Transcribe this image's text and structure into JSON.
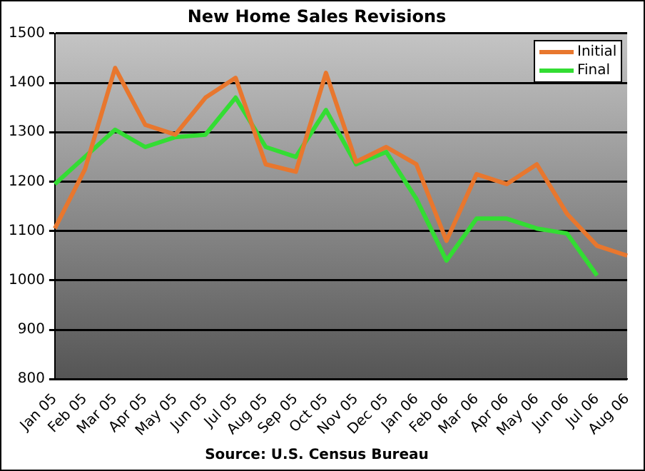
{
  "chart_data": {
    "type": "line",
    "title": "New Home Sales Revisions",
    "categories": [
      "Jan 05",
      "Feb 05",
      "Mar 05",
      "Apr 05",
      "May 05",
      "Jun 05",
      "Jul 05",
      "Aug 05",
      "Sep 05",
      "Oct 05",
      "Nov 05",
      "Dec 05",
      "Jan 06",
      "Feb 06",
      "Mar 06",
      "Apr 06",
      "May 06",
      "Jun 06",
      "Jul 06",
      "Aug 06"
    ],
    "series": [
      {
        "name": "Initial",
        "color": "#e8772e",
        "values": [
          1105,
          1225,
          1430,
          1315,
          1295,
          1370,
          1410,
          1235,
          1220,
          1420,
          1240,
          1270,
          1235,
          1080,
          1215,
          1195,
          1235,
          1135,
          1070,
          1050
        ]
      },
      {
        "name": "Final",
        "color": "#33dd33",
        "values": [
          1195,
          1250,
          1305,
          1270,
          1290,
          1295,
          1370,
          1270,
          1250,
          1345,
          1235,
          1260,
          1165,
          1040,
          1125,
          1125,
          1105,
          1095,
          1010,
          null
        ]
      }
    ],
    "ylim": [
      800,
      1500
    ],
    "yticks": [
      800,
      900,
      1000,
      1100,
      1200,
      1300,
      1400,
      1500
    ],
    "grid": "y",
    "legend": "top right",
    "marker": "none",
    "line_style": "solid",
    "annotations": [
      "Source: U.S. Census Bureau"
    ]
  }
}
